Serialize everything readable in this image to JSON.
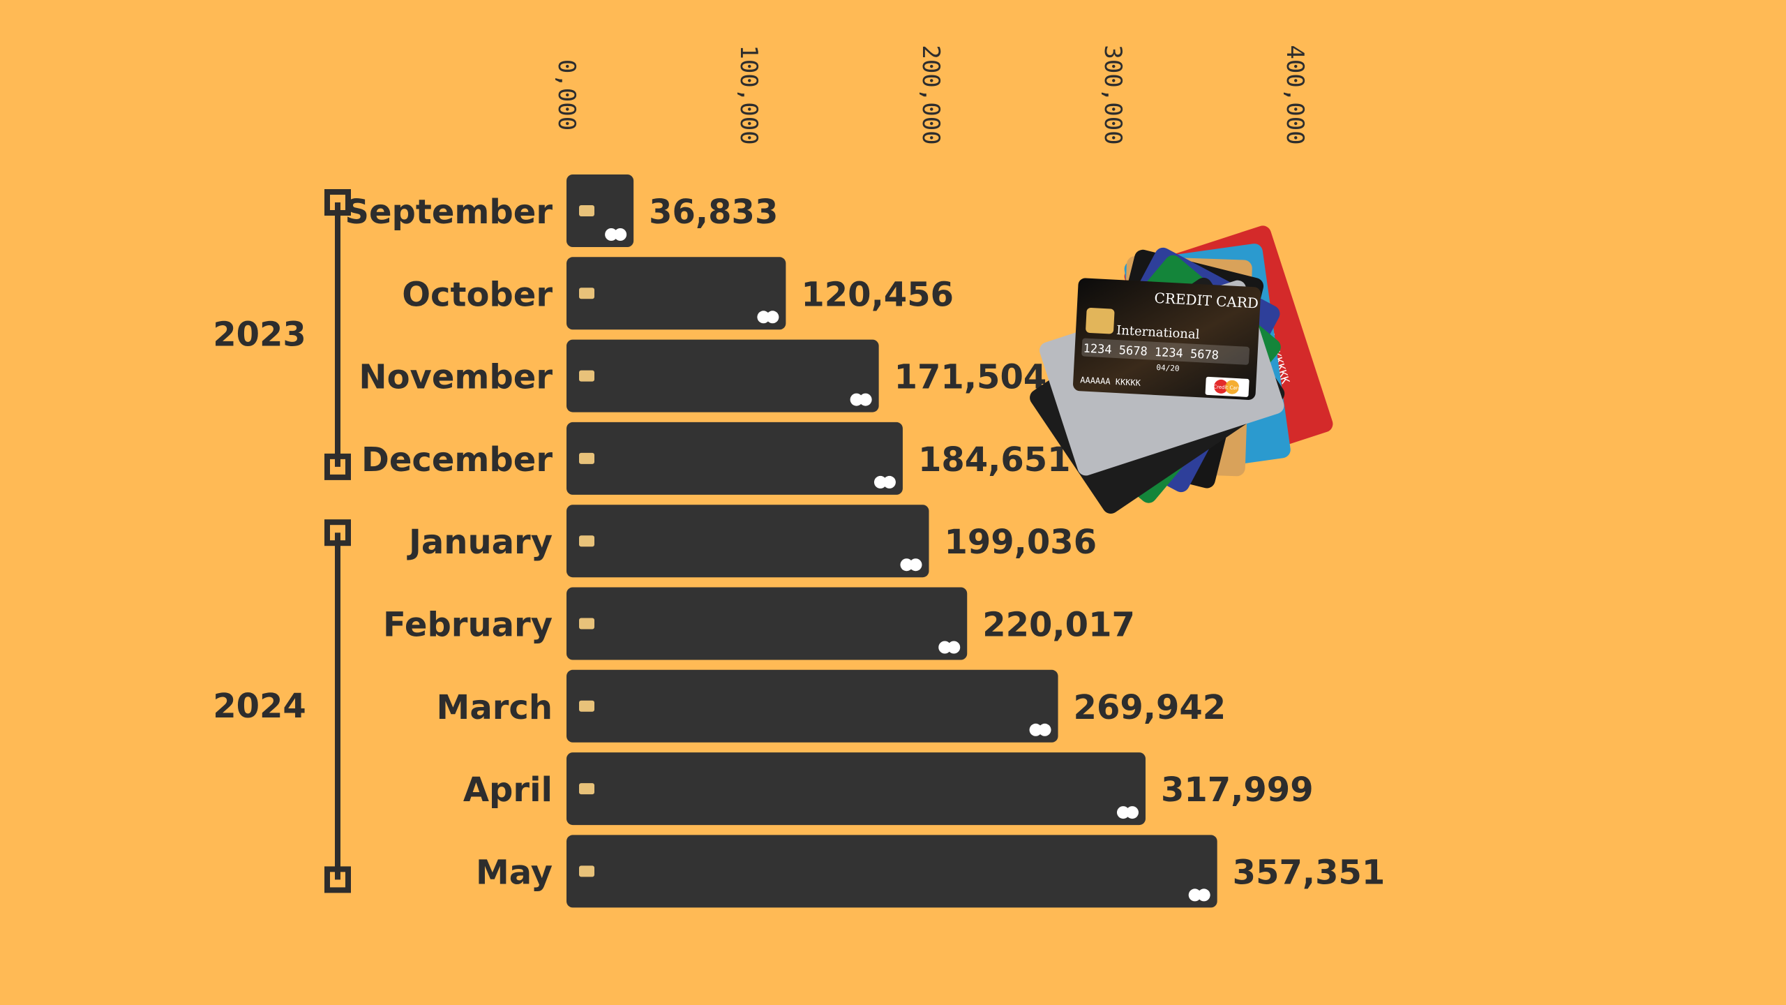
{
  "colors": {
    "background": "#FFBA55",
    "bar": "#333333",
    "text": "#2d2d2d",
    "chip": "#E8C27A",
    "logo": "#FFFFFF"
  },
  "groups": [
    {
      "label": "2023",
      "from": 0,
      "to": 3
    },
    {
      "label": "2024",
      "from": 4,
      "to": 8
    }
  ],
  "chart_data": {
    "type": "bar",
    "orientation": "horizontal",
    "categories": [
      "September",
      "October",
      "November",
      "December",
      "January",
      "February",
      "March",
      "April",
      "May"
    ],
    "values": [
      36833,
      120456,
      171504,
      184651,
      199036,
      220017,
      269942,
      317999,
      357351
    ],
    "value_labels": [
      "36,833",
      "120,456",
      "171,504",
      "184,651",
      "199,036",
      "220,017",
      "269,942",
      "317,999",
      "357,351"
    ],
    "xticks": [
      0,
      100000,
      200000,
      300000,
      400000
    ],
    "xtick_labels": [
      "0,000",
      "100,000",
      "200,000",
      "300,000",
      "400,000"
    ],
    "xlim": [
      0,
      400000
    ],
    "title": "",
    "xlabel": "",
    "ylabel": "",
    "grid": false,
    "legend": "none"
  },
  "illustration": {
    "name": "credit-cards-fan",
    "front_card_title": "CREDIT CARD",
    "front_card_brand": "International",
    "front_card_number": "1234 5678 1234 5678",
    "front_card_expiry": "04/20",
    "front_card_holder": "AAAAAA KKKKK",
    "front_card_logo_text": "Credit Card"
  }
}
